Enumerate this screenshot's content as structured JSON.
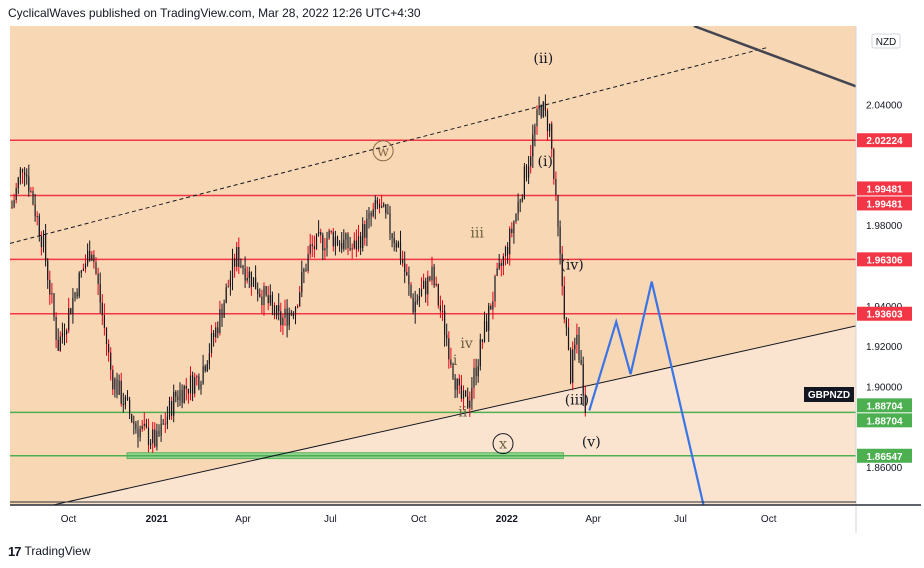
{
  "header": {
    "text": "CyclicalWaves published on TradingView.com, Mar 28, 2022 12:26 UTC+4:30"
  },
  "footer": {
    "logo": "17",
    "brand": "TradingView"
  },
  "colors": {
    "background_upper": "#f8d7b4",
    "background_lower": "#fbe4cf",
    "candle": "#131722",
    "wick_accent": "#e8001c",
    "resistance": "#f23645",
    "support": "#4caf50",
    "projection": "#3a75e8",
    "trend": "#131722"
  },
  "chart_data": {
    "type": "candlestick",
    "symbol": "GBPNZD",
    "currency": "NZD",
    "x_ticks": [
      "Oct",
      "2021",
      "Apr",
      "Jul",
      "Oct",
      "2022",
      "Apr",
      "Jul",
      "Oct"
    ],
    "y_ticks": [
      "2.04000",
      "2.02224",
      "1.99481",
      "1.98000",
      "1.96306",
      "1.94000",
      "1.93603",
      "1.92000",
      "1.90000",
      "1.88704",
      "1.86547",
      "1.86000"
    ],
    "ylim": [
      1.841,
      2.079
    ],
    "series_label": "GBPNZD",
    "price_levels": [
      {
        "value": 2.02224,
        "label": "2.02224",
        "kind": "resistance"
      },
      {
        "value": 1.99481,
        "label": "1.99481",
        "kind": "resistance",
        "labels": [
          "1.99481",
          "1.99481"
        ]
      },
      {
        "value": 1.96306,
        "label": "1.96306",
        "kind": "resistance"
      },
      {
        "value": 1.93603,
        "label": "1.93603",
        "kind": "resistance"
      },
      {
        "value": 1.88704,
        "label": "1.88704",
        "kind": "support",
        "labels": [
          "1.88704",
          "1.88704"
        ]
      },
      {
        "value": 1.86547,
        "label": "1.86547",
        "kind": "support"
      }
    ],
    "support_zone": {
      "from": "2020-12",
      "to": "2022-03",
      "value": 1.8655
    },
    "price_path": [
      {
        "date": "2020-08-01",
        "value": 1.985
      },
      {
        "date": "2020-08-15",
        "value": 2.012
      },
      {
        "date": "2020-09-05",
        "value": 1.97
      },
      {
        "date": "2020-09-20",
        "value": 1.92
      },
      {
        "date": "2020-10-10",
        "value": 1.95
      },
      {
        "date": "2020-10-25",
        "value": 1.97
      },
      {
        "date": "2020-11-15",
        "value": 1.905
      },
      {
        "date": "2020-12-10",
        "value": 1.88
      },
      {
        "date": "2021-01-01",
        "value": 1.872
      },
      {
        "date": "2021-01-20",
        "value": 1.895
      },
      {
        "date": "2021-02-15",
        "value": 1.905
      },
      {
        "date": "2021-03-05",
        "value": 1.93
      },
      {
        "date": "2021-03-25",
        "value": 1.965
      },
      {
        "date": "2021-04-15",
        "value": 1.95
      },
      {
        "date": "2021-05-10",
        "value": 1.932
      },
      {
        "date": "2021-05-25",
        "value": 1.94
      },
      {
        "date": "2021-06-10",
        "value": 1.968
      },
      {
        "date": "2021-07-01",
        "value": 1.975
      },
      {
        "date": "2021-07-25",
        "value": 1.968
      },
      {
        "date": "2021-08-20",
        "value": 1.99
      },
      {
        "date": "2021-09-10",
        "value": 1.97
      },
      {
        "date": "2021-09-25",
        "value": 1.94
      },
      {
        "date": "2021-10-15",
        "value": 1.955
      },
      {
        "date": "2021-10-30",
        "value": 1.925
      },
      {
        "date": "2021-11-12",
        "value": 1.895
      },
      {
        "date": "2021-11-20",
        "value": 1.89
      },
      {
        "date": "2021-12-05",
        "value": 1.92
      },
      {
        "date": "2021-12-20",
        "value": 1.95
      },
      {
        "date": "2022-01-05",
        "value": 1.975
      },
      {
        "date": "2022-01-20",
        "value": 2.005
      },
      {
        "date": "2022-02-05",
        "value": 2.04
      },
      {
        "date": "2022-02-15",
        "value": 2.028
      },
      {
        "date": "2022-02-25",
        "value": 1.965
      },
      {
        "date": "2022-03-08",
        "value": 1.905
      },
      {
        "date": "2022-03-15",
        "value": 1.925
      },
      {
        "date": "2022-03-25",
        "value": 1.888
      }
    ],
    "projection": [
      {
        "date": "2022-03-28",
        "value": 1.888
      },
      {
        "date": "2022-04-25",
        "value": 1.932
      },
      {
        "date": "2022-05-10",
        "value": 1.906
      },
      {
        "date": "2022-06-01",
        "value": 1.952
      },
      {
        "date": "2022-07-25",
        "value": 1.841
      }
    ],
    "wave_labels": [
      {
        "text": "(ii)",
        "date": "2022-02-08",
        "value": 2.063,
        "circled": false
      },
      {
        "text": "(i)",
        "date": "2022-02-10",
        "value": 2.012,
        "circled": false
      },
      {
        "text": "(iv)",
        "date": "2022-03-10",
        "value": 1.9605,
        "circled": false
      },
      {
        "text": "(iii)",
        "date": "2022-03-15",
        "value": 1.8935,
        "circled": false
      },
      {
        "text": "(v)",
        "date": "2022-03-30",
        "value": 1.8725,
        "circled": false
      },
      {
        "text": "w",
        "date": "2021-08-25",
        "value": 2.017,
        "circled": true
      },
      {
        "text": "x",
        "date": "2021-12-28",
        "value": 1.8715,
        "circled": true
      },
      {
        "text": "iii",
        "date": "2021-12-01",
        "value": 1.9765,
        "circled": false
      },
      {
        "text": "iv",
        "date": "2021-11-20",
        "value": 1.9215,
        "circled": false
      },
      {
        "text": "i",
        "date": "2021-11-08",
        "value": 1.913,
        "circled": false
      },
      {
        "text": "ii",
        "date": "2021-11-16",
        "value": 1.8875,
        "circled": false
      }
    ],
    "trendlines": [
      {
        "style": "dashed",
        "from": {
          "date": "2020-08-01",
          "value": 1.971
        },
        "to": {
          "date": "2022-10-01",
          "value": 2.0685
        }
      },
      {
        "style": "solid",
        "from": {
          "date": "2020-09-15",
          "value": 1.841
        },
        "to": {
          "date": "2022-12-31",
          "value": 1.93
        }
      },
      {
        "style": "solid-thick",
        "from": {
          "date": "2022-07-15",
          "value": 2.079
        },
        "to": {
          "date": "2022-12-31",
          "value": 2.049
        }
      }
    ],
    "grid": false,
    "legend": "none"
  }
}
